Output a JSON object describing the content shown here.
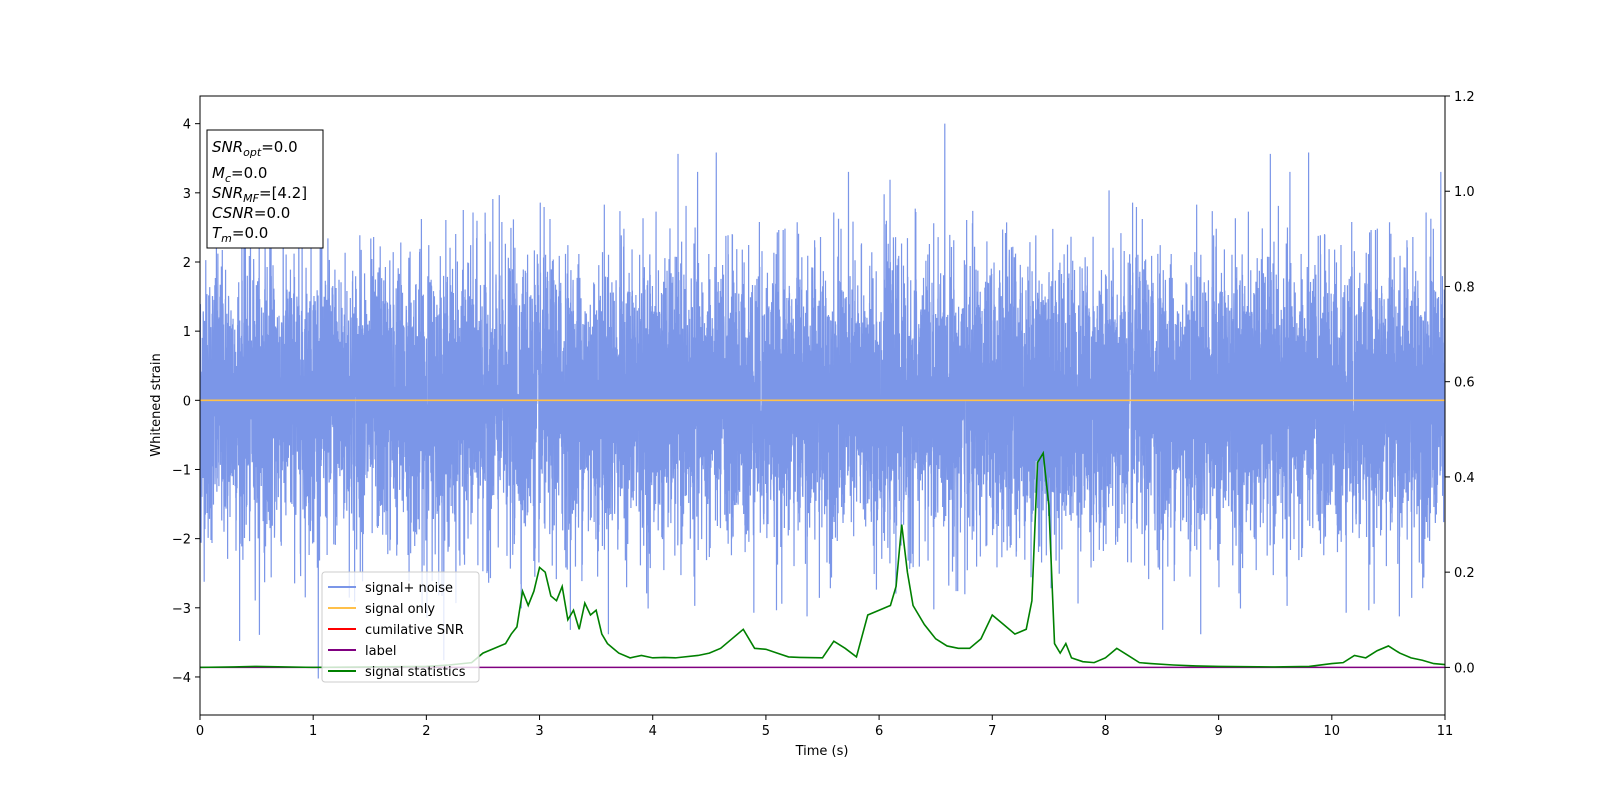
{
  "chart_data": {
    "type": "line",
    "xlabel": "Time (s)",
    "ylabel": "Whitened strain",
    "xlim": [
      0,
      11
    ],
    "ylim": [
      -4.55,
      4.4
    ],
    "y2lim": [
      -0.1,
      1.2
    ],
    "x_ticks": [
      "0",
      "1",
      "2",
      "3",
      "4",
      "5",
      "6",
      "7",
      "8",
      "9",
      "10",
      "11"
    ],
    "y_ticks": [
      "−4",
      "−3",
      "−2",
      "−1",
      "0",
      "1",
      "2",
      "3",
      "4"
    ],
    "y2_ticks": [
      "0.0",
      "0.2",
      "0.4",
      "0.6",
      "0.8",
      "1.0",
      "1.2"
    ],
    "grid": false,
    "info_box": {
      "snr_opt": {
        "sym": "SNR",
        "sub": "opt",
        "value": "=0.0"
      },
      "mc": {
        "sym": "M",
        "sub": "c",
        "value": "=0.0"
      },
      "snr_mf": {
        "sym": "SNR",
        "sub": "MF",
        "value": "=[4.2]"
      },
      "csnr": {
        "sym": "CSNR",
        "value": "=0.0"
      },
      "tm": {
        "sym": "T",
        "sub": "m",
        "value": "=0.0"
      }
    },
    "legend": {
      "placement": "lower-left",
      "entries": [
        {
          "label": "signal+ noise",
          "color": "#7b96e8"
        },
        {
          "label": "signal only",
          "color": "#ffc04a"
        },
        {
          "label": "cumilative SNR",
          "color": "#ff0000"
        },
        {
          "label": "label",
          "color": "#800080"
        },
        {
          "label": "signal statistics",
          "color": "#008000"
        }
      ]
    },
    "series": [
      {
        "name": "signal+ noise",
        "axis": "left",
        "color": "#7b96e8",
        "description_kind": "noise",
        "approx_range": [
          -4.15,
          4.0
        ]
      },
      {
        "name": "signal only",
        "axis": "left",
        "color": "#ffc04a",
        "x": [
          0,
          11
        ],
        "y": [
          0,
          0
        ]
      },
      {
        "name": "label",
        "axis": "right",
        "color": "#800080",
        "x": [
          0,
          11
        ],
        "y": [
          0,
          0
        ]
      },
      {
        "name": "signal statistics",
        "axis": "right",
        "color": "#008000",
        "x": [
          0,
          0.3,
          0.5,
          1.0,
          1.5,
          2.0,
          2.2,
          2.4,
          2.5,
          2.6,
          2.7,
          2.75,
          2.8,
          2.85,
          2.9,
          2.95,
          3.0,
          3.05,
          3.1,
          3.15,
          3.2,
          3.25,
          3.3,
          3.35,
          3.4,
          3.45,
          3.5,
          3.55,
          3.6,
          3.65,
          3.7,
          3.8,
          3.9,
          4.0,
          4.1,
          4.2,
          4.4,
          4.5,
          4.6,
          4.7,
          4.8,
          4.9,
          5.0,
          5.1,
          5.2,
          5.3,
          5.5,
          5.6,
          5.7,
          5.8,
          5.9,
          6.0,
          6.1,
          6.15,
          6.2,
          6.25,
          6.3,
          6.4,
          6.5,
          6.6,
          6.7,
          6.8,
          6.9,
          7.0,
          7.1,
          7.2,
          7.3,
          7.35,
          7.4,
          7.45,
          7.5,
          7.55,
          7.6,
          7.65,
          7.7,
          7.8,
          7.9,
          8.0,
          8.1,
          8.2,
          8.3,
          8.4,
          8.6,
          8.8,
          9.0,
          9.5,
          9.8,
          10.0,
          10.1,
          10.2,
          10.3,
          10.4,
          10.5,
          10.6,
          10.7,
          10.8,
          10.9,
          11.0
        ],
        "y": [
          0.0,
          0.001,
          0.002,
          0.0,
          0.001,
          0.002,
          0.005,
          0.01,
          0.03,
          0.04,
          0.05,
          0.07,
          0.085,
          0.16,
          0.13,
          0.16,
          0.21,
          0.2,
          0.15,
          0.14,
          0.17,
          0.1,
          0.12,
          0.08,
          0.135,
          0.11,
          0.12,
          0.07,
          0.05,
          0.04,
          0.03,
          0.02,
          0.025,
          0.02,
          0.021,
          0.02,
          0.025,
          0.03,
          0.04,
          0.06,
          0.08,
          0.04,
          0.038,
          0.03,
          0.022,
          0.021,
          0.02,
          0.055,
          0.04,
          0.022,
          0.11,
          0.12,
          0.13,
          0.17,
          0.3,
          0.2,
          0.13,
          0.09,
          0.06,
          0.045,
          0.04,
          0.04,
          0.06,
          0.11,
          0.09,
          0.07,
          0.08,
          0.14,
          0.43,
          0.45,
          0.34,
          0.05,
          0.03,
          0.05,
          0.02,
          0.012,
          0.01,
          0.02,
          0.04,
          0.025,
          0.01,
          0.008,
          0.005,
          0.003,
          0.002,
          0.001,
          0.002,
          0.008,
          0.01,
          0.025,
          0.02,
          0.035,
          0.045,
          0.03,
          0.02,
          0.015,
          0.008,
          0.006
        ]
      }
    ]
  }
}
